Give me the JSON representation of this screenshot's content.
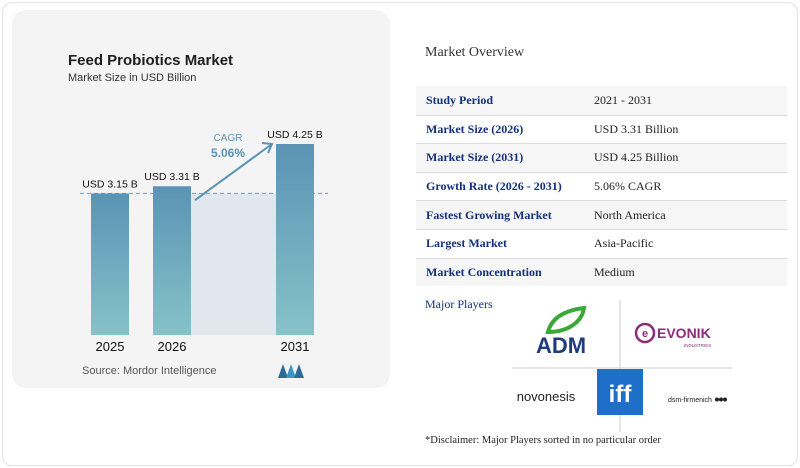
{
  "chart_data": {
    "type": "bar",
    "title": "Feed Probiotics Market",
    "subtitle": "Market Size in USD Billion",
    "categories": [
      "2025",
      "2026",
      "2031"
    ],
    "values": [
      3.15,
      3.31,
      4.25
    ],
    "value_labels": [
      "USD 3.15 B",
      "USD 3.31 B",
      "USD 4.25 B"
    ],
    "cagr_label": "CAGR",
    "cagr_value": "5.06%",
    "bar_color": "#5b93b5",
    "bar_color_light": "#86c2c8",
    "projection_fill": "#e1e7ee",
    "source": "Source: Mordor Intelligence"
  },
  "overview": {
    "title": "Market Overview",
    "rows": [
      {
        "label": "Study Period",
        "value": "2021 - 2031"
      },
      {
        "label": "Market Size (2026)",
        "value": "USD 3.31 Billion"
      },
      {
        "label": "Market Size (2031)",
        "value": "USD 4.25 Billion"
      },
      {
        "label": "Growth Rate (2026 - 2031)",
        "value": "5.06% CAGR"
      },
      {
        "label": "Fastest Growing Market",
        "value": "North America"
      },
      {
        "label": "Largest Market",
        "value": "Asia-Pacific"
      },
      {
        "label": "Market Concentration",
        "value": "Medium"
      }
    ]
  },
  "players": {
    "label": "Major Players",
    "logos": {
      "adm": "ADM",
      "evonik": "EVONIK",
      "evonik_sub": "INDUSTRIES",
      "novonesis": "novonesis",
      "iff": "iff",
      "dsm": "dsm-firmenich"
    },
    "colors": {
      "adm_green": "#3aa935",
      "adm_blue": "#1e3d7b",
      "evonik": "#8c2b7a",
      "iff": "#1e6fc8"
    }
  },
  "disclaimer": "*Disclaimer: Major Players sorted in no particular order"
}
